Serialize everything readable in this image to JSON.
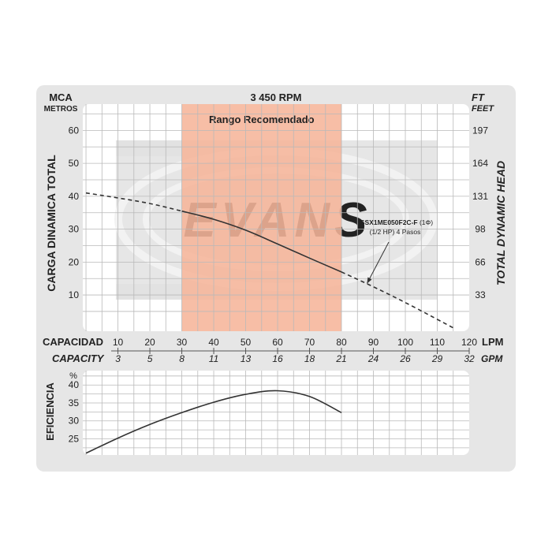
{
  "header": {
    "left_unit_top": "MCA",
    "left_unit_bottom": "METROS",
    "rpm": "3 450 RPM",
    "right_unit_top": "FT",
    "right_unit_bottom": "FEET"
  },
  "range_label": "Rango Recomendado",
  "watermark": "EVANS",
  "model_callout": {
    "model": "SSX1ME050F2C-F",
    "phase": "(1Φ)",
    "hp_line": "(1/2 HP)  4 Pasos"
  },
  "axis_titles": {
    "head_left": "CARGA  DINAMICA  TOTAL",
    "head_right": "TOTAL  DYNAMIC  HEAD",
    "capacidad": "CAPACIDAD",
    "capacity": "CAPACITY",
    "lpm": "LPM",
    "gpm": "GPM",
    "efficiency": "EFICIENCIA",
    "efficiency_unit": "%"
  },
  "colors": {
    "frame": "#e6e6e6",
    "grid": "#b9b9b9",
    "range_fill": "#f6b59a",
    "curve": "#333333",
    "watermark": "#d9d9d9"
  },
  "chart_data": [
    {
      "type": "line",
      "title": "3 450 RPM",
      "xlabel": "CAPACIDAD",
      "ylabel": "CARGA  DINAMICA  TOTAL",
      "x_unit": "LPM",
      "y_unit": "MCA",
      "xlim": [
        -1,
        120
      ],
      "ylim": [
        -1,
        68
      ],
      "x_ticks": [
        10,
        20,
        30,
        40,
        50,
        60,
        70,
        80,
        90,
        100,
        110,
        120
      ],
      "x_ticks_gpm": [
        "3",
        "5",
        "8",
        "11",
        "13",
        "16",
        "18",
        "21",
        "24",
        "26",
        "29",
        "32"
      ],
      "y_ticks": [
        10,
        20,
        30,
        40,
        50,
        60
      ],
      "y_ticks_ft": [
        "33",
        "66",
        "98",
        "131",
        "164",
        "197"
      ],
      "recommended_range": [
        30,
        80
      ],
      "series": [
        {
          "name": "SSX1ME050F2C-F (1Φ) (1/2 HP) 4 Pasos",
          "x": [
            0,
            10,
            20,
            30,
            40,
            50,
            60,
            70,
            80,
            90,
            100,
            110,
            115
          ],
          "y": [
            41,
            39.5,
            37.8,
            35.5,
            33,
            29.7,
            25.5,
            21.2,
            17,
            12.5,
            7.7,
            2.6,
            0
          ]
        }
      ],
      "solid_range": [
        30,
        80
      ],
      "grid": true
    },
    {
      "type": "line",
      "xlabel": "CAPACIDAD",
      "ylabel": "EFICIENCIA",
      "y_unit": "%",
      "xlim": [
        -1,
        120
      ],
      "ylim": [
        20.5,
        44
      ],
      "y_ticks": [
        25,
        30,
        35,
        40
      ],
      "series": [
        {
          "x": [
            0,
            10,
            20,
            30,
            40,
            50,
            60,
            70,
            80
          ],
          "y": [
            21,
            25.2,
            29,
            32.3,
            35.2,
            37.4,
            38.4,
            36.8,
            32.3
          ]
        }
      ],
      "grid": true
    }
  ]
}
